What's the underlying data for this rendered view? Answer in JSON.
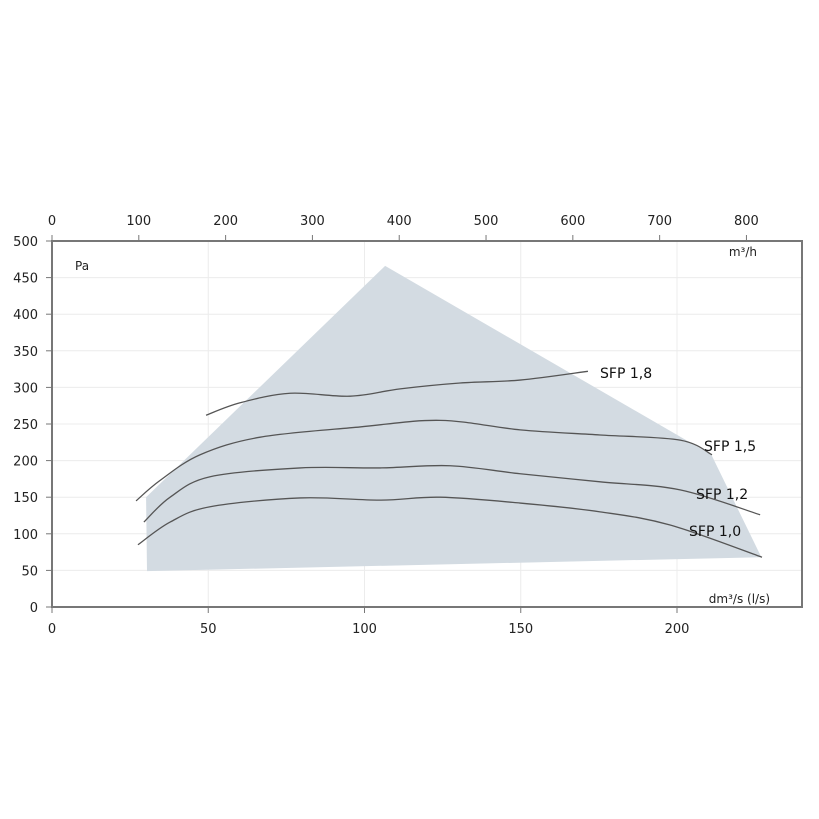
{
  "chart_data": {
    "type": "line",
    "xlabel": "dm³/s (l/s)",
    "x2label": "m³/h",
    "ylabel": "Pa",
    "xlim": [
      0,
      240
    ],
    "x2lim": [
      0,
      864
    ],
    "ylim": [
      0,
      500
    ],
    "xticks": [
      0,
      50,
      100,
      150,
      200
    ],
    "x2ticks": [
      0,
      100,
      200,
      300,
      400,
      500,
      600,
      700,
      800
    ],
    "yticks": [
      0,
      50,
      100,
      150,
      200,
      250,
      300,
      350,
      400,
      450,
      500
    ],
    "grid": true,
    "area": {
      "color": "#d3dbe2",
      "points": [
        [
          30.1,
          150
        ],
        [
          106.6,
          466
        ],
        [
          211,
          208
        ],
        [
          227,
          68
        ],
        [
          30.4,
          49
        ]
      ]
    },
    "series": [
      {
        "name": "SFP 1,8",
        "x": [
          49.3,
          60.2,
          76.2,
          95.4,
          111.4,
          130.6,
          149.8,
          171.5
        ],
        "y": [
          262,
          279,
          292,
          288,
          298,
          306,
          310,
          322
        ]
      },
      {
        "name": "SFP 1,5",
        "x": [
          26.9,
          34.6,
          47.4,
          66.6,
          98.6,
          124.2,
          149.8,
          175.4,
          201,
          211.2
        ],
        "y": [
          145,
          173,
          208,
          232,
          246,
          255,
          242,
          235,
          228,
          208
        ]
      },
      {
        "name": "SFP 1,2",
        "x": [
          29.4,
          37.8,
          50.6,
          79.4,
          105,
          127.4,
          149.8,
          175.4,
          201,
          226.6
        ],
        "y": [
          116,
          150,
          178,
          190,
          190,
          193,
          182,
          171,
          160,
          126
        ]
      },
      {
        "name": "SFP 1,0",
        "x": [
          27.5,
          37.8,
          50.6,
          79.4,
          105,
          124.2,
          149.8,
          175.4,
          197.8,
          227.2
        ],
        "y": [
          85,
          116,
          137,
          149,
          146,
          150,
          142,
          130,
          112,
          68
        ]
      }
    ],
    "line_color": "#555555",
    "frame_color": "#777777"
  }
}
